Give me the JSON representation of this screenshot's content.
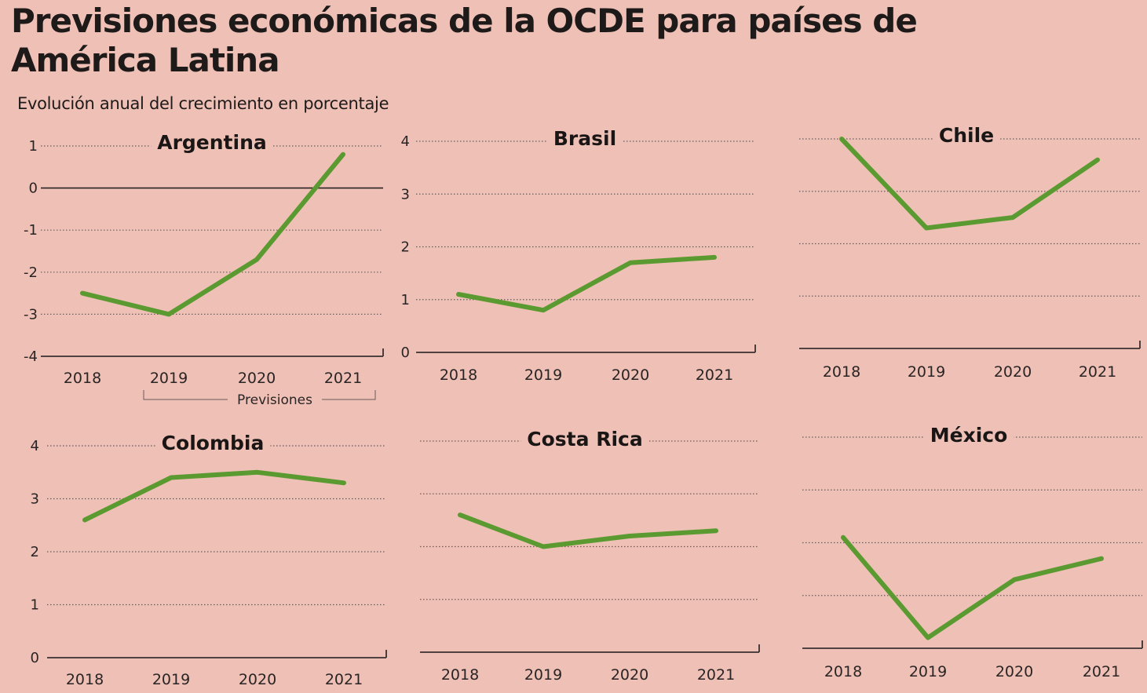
{
  "header": {
    "title": "Previsiones económicas de la OCDE para países de América Latina",
    "subtitle": "Evolución anual del crecimiento en porcentaje"
  },
  "annotation": "Previsiones",
  "colors": {
    "line": "#5a9a30",
    "background": "#efc1b6"
  },
  "chart_data": [
    {
      "type": "line",
      "title": "Argentina",
      "categories": [
        "2018",
        "2019",
        "2020",
        "2021"
      ],
      "values": [
        -2.5,
        -3.0,
        -1.7,
        0.8
      ],
      "ylim": [
        -4,
        1
      ],
      "yticks": [
        1,
        0,
        -1,
        -2,
        -3,
        -4
      ],
      "grid": true,
      "zero_line": true
    },
    {
      "type": "line",
      "title": "Brasil",
      "categories": [
        "2018",
        "2019",
        "2020",
        "2021"
      ],
      "values": [
        1.1,
        0.8,
        1.7,
        1.8
      ],
      "ylim": [
        0,
        4
      ],
      "yticks": [
        4,
        3,
        2,
        1,
        0
      ],
      "grid": true
    },
    {
      "type": "line",
      "title": "Chile",
      "categories": [
        "2018",
        "2019",
        "2020",
        "2021"
      ],
      "values": [
        4.0,
        2.3,
        2.5,
        3.6
      ],
      "ylim": [
        0,
        4
      ],
      "yticks": [],
      "grid": true
    },
    {
      "type": "line",
      "title": "Colombia",
      "categories": [
        "2018",
        "2019",
        "2020",
        "2021"
      ],
      "values": [
        2.6,
        3.4,
        3.5,
        3.3
      ],
      "ylim": [
        0,
        4
      ],
      "yticks": [
        4,
        3,
        2,
        1,
        0
      ],
      "grid": true
    },
    {
      "type": "line",
      "title": "Costa Rica",
      "categories": [
        "2018",
        "2019",
        "2020",
        "2021"
      ],
      "values": [
        2.6,
        2.0,
        2.2,
        2.3
      ],
      "ylim": [
        0,
        4
      ],
      "yticks": [],
      "grid": true
    },
    {
      "type": "line",
      "title": "México",
      "categories": [
        "2018",
        "2019",
        "2020",
        "2021"
      ],
      "values": [
        2.1,
        0.2,
        1.3,
        1.7
      ],
      "ylim": [
        0,
        4
      ],
      "yticks": [],
      "grid": true
    }
  ]
}
